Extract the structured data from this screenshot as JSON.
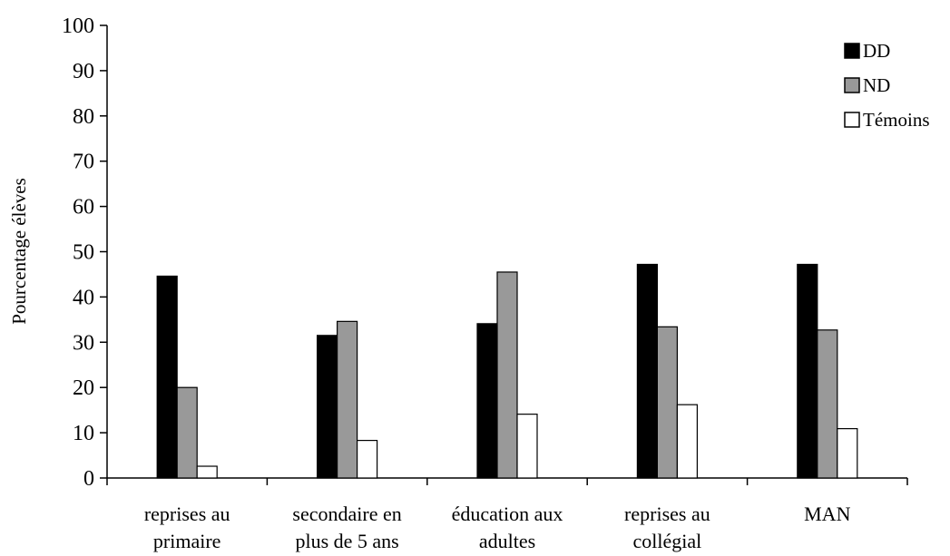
{
  "chart_data": {
    "type": "bar",
    "title": "",
    "xlabel": "",
    "ylabel": "Pourcentage élèves",
    "ylim": [
      0,
      100
    ],
    "yticks": [
      0,
      10,
      20,
      30,
      40,
      50,
      60,
      70,
      80,
      90,
      100
    ],
    "grid": false,
    "legend_position": "top-right",
    "categories": [
      [
        "reprises au",
        "primaire"
      ],
      [
        "secondaire en",
        "plus de 5 ans"
      ],
      [
        "éducation aux",
        "adultes"
      ],
      [
        "reprises au",
        "collégial"
      ],
      [
        "MAN"
      ]
    ],
    "series": [
      {
        "name": "DD",
        "color": "#000000",
        "values": [
          44.6,
          31.5,
          34.1,
          47.2,
          47.2
        ]
      },
      {
        "name": "ND",
        "color": "#999999",
        "values": [
          20.0,
          34.6,
          45.5,
          33.4,
          32.7
        ]
      },
      {
        "name": "Témoins",
        "color": "#ffffff",
        "values": [
          2.6,
          8.3,
          14.1,
          16.2,
          10.9
        ]
      }
    ]
  }
}
